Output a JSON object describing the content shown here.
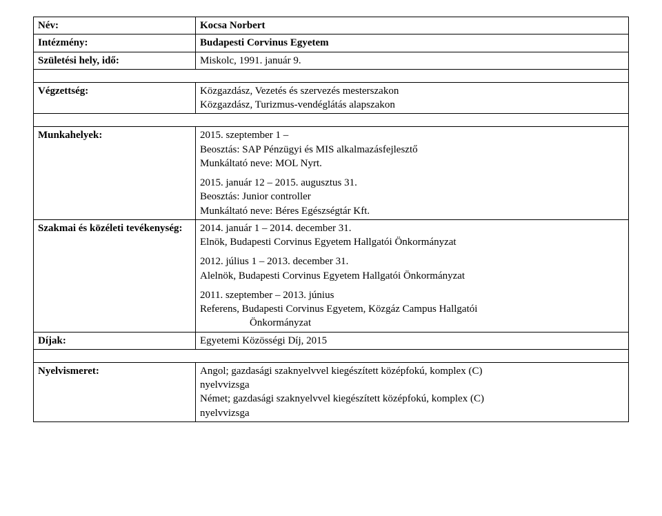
{
  "labels": {
    "name": "Név:",
    "institution": "Intézmény:",
    "birth": "Születési hely, idő:",
    "education": "Végzettség:",
    "jobs": "Munkahelyek:",
    "activities": "Szakmai és közéleti tevékenység:",
    "awards": "Díjak:",
    "languages": "Nyelvismeret:"
  },
  "personal": {
    "name": "Kocsa Norbert",
    "institution": "Budapesti Corvinus Egyetem",
    "birth": "Miskolc, 1991. január 9."
  },
  "education": {
    "line1": "Közgazdász, Vezetés és szervezés mesterszakon",
    "line2": "Közgazdász, Turizmus-vendéglátás alapszakon"
  },
  "jobs": {
    "j1": {
      "dates": "2015. szeptember 1 –",
      "position": "Beosztás: SAP Pénzügyi és MIS alkalmazásfejlesztő",
      "employer": "Munkáltató neve: MOL Nyrt."
    },
    "j2": {
      "dates": "2015. január 12 – 2015. augusztus 31.",
      "position": "Beosztás: Junior controller",
      "employer": "Munkáltató neve: Béres Egészségtár Kft."
    }
  },
  "activities": {
    "a1": {
      "dates": "2014. január 1 – 2014. december 31.",
      "desc": "Elnök, Budapesti Corvinus Egyetem Hallgatói Önkormányzat"
    },
    "a2": {
      "dates": "2012. július 1 – 2013. december 31.",
      "desc": "Alelnök, Budapesti Corvinus Egyetem Hallgatói Önkormányzat"
    },
    "a3": {
      "dates": "2011. szeptember – 2013. június",
      "desc": "Referens, Budapesti Corvinus Egyetem, Közgáz Campus Hallgatói",
      "desc_indent": "Önkormányzat"
    }
  },
  "awards": "Egyetemi Közösségi Díj, 2015",
  "languages": {
    "l1a": "Angol; gazdasági szaknyelvvel kiegészített középfokú, komplex (C)",
    "l1b": "nyelvvizsga",
    "l2a": "Német; gazdasági szaknyelvvel kiegészített középfokú, komplex (C)",
    "l2b": "nyelvvizsga"
  }
}
